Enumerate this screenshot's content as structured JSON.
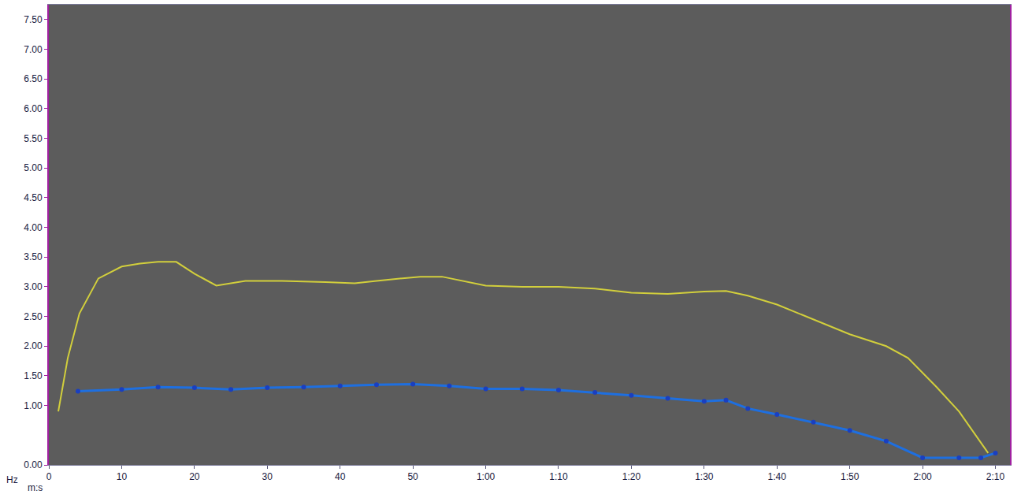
{
  "chart_data": {
    "type": "line",
    "x_label": "m:s",
    "y_label": "Hz",
    "xlim": [
      0,
      132
    ],
    "ylim": [
      0,
      7.75
    ],
    "xticks": [
      0,
      10,
      20,
      30,
      40,
      50,
      {
        "value": 60,
        "label": "1:00"
      },
      {
        "value": 70,
        "label": "1:10"
      },
      {
        "value": 80,
        "label": "1:20"
      },
      {
        "value": 90,
        "label": "1:30"
      },
      {
        "value": 100,
        "label": "1:40"
      },
      {
        "value": 110,
        "label": "1:50"
      },
      {
        "value": 120,
        "label": "2:00"
      },
      {
        "value": 130,
        "label": "2:10"
      }
    ],
    "yticks": [
      {
        "value": 0,
        "label": "0.00"
      },
      {
        "value": 1,
        "label": "1.00"
      },
      {
        "value": 1.5,
        "label": "1.50"
      },
      {
        "value": 2,
        "label": "2.00"
      },
      {
        "value": 2.5,
        "label": "2.50"
      },
      {
        "value": 3,
        "label": "3.00"
      },
      {
        "value": 3.5,
        "label": "3.50"
      },
      {
        "value": 4,
        "label": "4.00"
      },
      {
        "value": 4.5,
        "label": "4.50"
      },
      {
        "value": 5,
        "label": "5.00"
      },
      {
        "value": 5.5,
        "label": "5.50"
      },
      {
        "value": 6,
        "label": "6.00"
      },
      {
        "value": 6.5,
        "label": "6.50"
      },
      {
        "value": 7,
        "label": "7.00"
      },
      {
        "value": 7.5,
        "label": "7.50"
      }
    ],
    "grid": false,
    "series": [
      {
        "color": "#d2cf3c",
        "line_style": "solid",
        "x": [
          1.3,
          2.6,
          4.2,
          6.8,
          10,
          12.5,
          15,
          17.5,
          20,
          23,
          27,
          32,
          38,
          42,
          45,
          48,
          51,
          54,
          57,
          60,
          65,
          70,
          75,
          80,
          85,
          90,
          93,
          96,
          100,
          105,
          110,
          115,
          118,
          122,
          125,
          129
        ],
        "values": [
          0.9,
          1.8,
          2.55,
          3.14,
          3.34,
          3.39,
          3.42,
          3.42,
          3.22,
          3.02,
          3.1,
          3.1,
          3.08,
          3.06,
          3.1,
          3.14,
          3.17,
          3.17,
          3.1,
          3.02,
          3.0,
          3.0,
          2.97,
          2.9,
          2.88,
          2.92,
          2.93,
          2.85,
          2.7,
          2.45,
          2.2,
          2.0,
          1.8,
          1.3,
          0.9,
          0.2
        ]
      },
      {
        "color": "#1e6fe0",
        "marker": "circle",
        "line_style": "solid",
        "x": [
          4,
          10,
          15,
          20,
          25,
          30,
          35,
          40,
          45,
          50,
          55,
          60,
          65,
          70,
          75,
          80,
          85,
          90,
          93,
          96,
          100,
          105,
          110,
          115,
          120,
          125,
          128,
          130
        ],
        "values": [
          1.24,
          1.27,
          1.31,
          1.3,
          1.27,
          1.3,
          1.31,
          1.33,
          1.35,
          1.36,
          1.33,
          1.28,
          1.28,
          1.26,
          1.22,
          1.17,
          1.12,
          1.07,
          1.09,
          0.95,
          0.85,
          0.72,
          0.58,
          0.4,
          0.12,
          0.12,
          0.12,
          0.2
        ]
      }
    ]
  }
}
